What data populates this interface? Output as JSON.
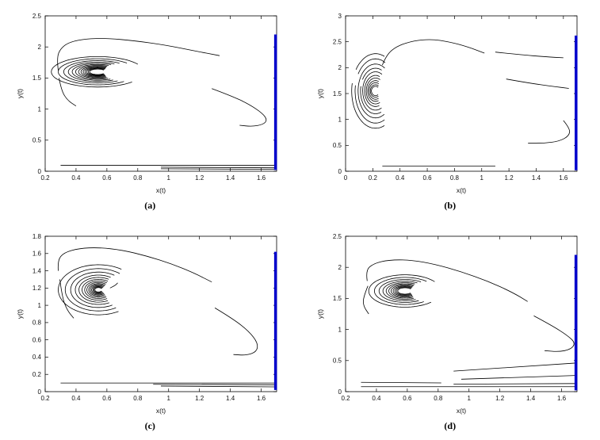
{
  "page": {
    "background": "#ffffff"
  },
  "chart_data": [
    {
      "id": "a",
      "type": "line",
      "caption": "(a)",
      "xlabel": "x(t)",
      "ylabel": "y(t)",
      "xlim": [
        0.2,
        1.7
      ],
      "ylim": [
        0,
        2.5
      ],
      "xticks": [
        0.2,
        0.4,
        0.6,
        0.8,
        1,
        1.2,
        1.4,
        1.6
      ],
      "xtick_labels": [
        "0.2",
        "0.4",
        "0.6",
        "0.8",
        "1",
        "1.2",
        "1.4",
        "1.6"
      ],
      "yticks": [
        0,
        0.5,
        1,
        1.5,
        2,
        2.5
      ],
      "ytick_labels": [
        "0",
        "0.5",
        "1",
        "1.5",
        "2",
        "2.5"
      ],
      "grid": false,
      "trajectory_color": "#000000",
      "equilibrium_color": "#0000cc",
      "spiral": {
        "cx": 0.54,
        "cy": 1.6,
        "arcs": [
          [
            0.3,
            0.245,
            30,
            318
          ],
          [
            0.255,
            0.21,
            42,
            312
          ],
          [
            0.22,
            0.18,
            50,
            306
          ],
          [
            0.19,
            0.155,
            55,
            302
          ],
          [
            0.165,
            0.135,
            58,
            300
          ],
          [
            0.143,
            0.118,
            60,
            298
          ],
          [
            0.124,
            0.103,
            60,
            298
          ],
          [
            0.108,
            0.09,
            58,
            300
          ],
          [
            0.094,
            0.078,
            55,
            303
          ],
          [
            0.082,
            0.068,
            52,
            306
          ],
          [
            0.071,
            0.059,
            48,
            310
          ],
          [
            0.061,
            0.051,
            44,
            314
          ],
          [
            0.052,
            0.044,
            40,
            318
          ]
        ]
      },
      "series": [
        {
          "name": "outer-loop-top",
          "points": [
            [
              0.285,
              1.62
            ],
            [
              0.275,
              1.82
            ],
            [
              0.3,
              1.98
            ],
            [
              0.36,
              2.08
            ],
            [
              0.46,
              2.13
            ],
            [
              0.6,
              2.14
            ],
            [
              0.78,
              2.1
            ],
            [
              0.98,
              2.03
            ],
            [
              1.16,
              1.94
            ],
            [
              1.33,
              1.86
            ]
          ]
        },
        {
          "name": "outer-loop-left",
          "points": [
            [
              0.29,
              1.5
            ],
            [
              0.305,
              1.3
            ],
            [
              0.345,
              1.14
            ],
            [
              0.4,
              1.05
            ]
          ]
        },
        {
          "name": "right-hook",
          "points": [
            [
              1.28,
              1.33
            ],
            [
              1.4,
              1.22
            ],
            [
              1.52,
              1.08
            ],
            [
              1.61,
              0.93
            ],
            [
              1.64,
              0.82
            ],
            [
              1.61,
              0.75
            ],
            [
              1.54,
              0.72
            ],
            [
              1.46,
              0.74
            ]
          ]
        }
      ],
      "bottom_lines": [
        [
          0.3,
          0.095,
          1.69,
          0.095
        ],
        [
          0.95,
          0.065,
          1.69,
          0.055
        ],
        [
          0.95,
          0.04,
          1.69,
          0.03
        ]
      ],
      "equilibrium_bar": {
        "x": 1.693,
        "y0": 0.02,
        "y1": 2.2
      }
    },
    {
      "id": "b",
      "type": "line",
      "caption": "(b)",
      "xlabel": "x(t)",
      "ylabel": "y(t)",
      "xlim": [
        0,
        1.7
      ],
      "ylim": [
        0,
        3
      ],
      "xticks": [
        0,
        0.2,
        0.4,
        0.6,
        0.8,
        1,
        1.2,
        1.4,
        1.6
      ],
      "xtick_labels": [
        "0",
        "0.2",
        "0.4",
        "0.6",
        "0.8",
        "1",
        "1.2",
        "1.4",
        "1.6"
      ],
      "yticks": [
        0,
        0.5,
        1,
        1.5,
        2,
        2.5,
        3
      ],
      "ytick_labels": [
        "0",
        "0.5",
        "1",
        "1.5",
        "2",
        "2.5",
        "3"
      ],
      "grid": false,
      "trajectory_color": "#000000",
      "equilibrium_color": "#0000cc",
      "spiral": {
        "cx": 0.22,
        "cy": 1.55,
        "arcs": [
          [
            0.175,
            0.72,
            68,
            145
          ],
          [
            0.175,
            0.72,
            168,
            292
          ],
          [
            0.15,
            0.62,
            62,
            148
          ],
          [
            0.15,
            0.62,
            170,
            296
          ],
          [
            0.128,
            0.52,
            58,
            300
          ],
          [
            0.11,
            0.44,
            66,
            150
          ],
          [
            0.11,
            0.44,
            168,
            292
          ],
          [
            0.094,
            0.37,
            60,
            298
          ],
          [
            0.08,
            0.3,
            68,
            290
          ],
          [
            0.068,
            0.25,
            60,
            298
          ],
          [
            0.057,
            0.2,
            66,
            292
          ],
          [
            0.047,
            0.16,
            60,
            298
          ],
          [
            0.038,
            0.12,
            55,
            303
          ],
          [
            0.03,
            0.09,
            50,
            308
          ]
        ]
      },
      "series": [
        {
          "name": "outer-loop-top",
          "points": [
            [
              0.27,
              2.05
            ],
            [
              0.3,
              2.25
            ],
            [
              0.38,
              2.42
            ],
            [
              0.5,
              2.52
            ],
            [
              0.63,
              2.55
            ],
            [
              0.76,
              2.5
            ],
            [
              0.9,
              2.4
            ],
            [
              1.02,
              2.28
            ]
          ]
        },
        {
          "name": "upper-right-arc",
          "points": [
            [
              1.1,
              2.3
            ],
            [
              1.28,
              2.25
            ],
            [
              1.47,
              2.21
            ],
            [
              1.6,
              2.19
            ]
          ]
        },
        {
          "name": "mid-right-arc",
          "points": [
            [
              1.18,
              1.78
            ],
            [
              1.35,
              1.7
            ],
            [
              1.52,
              1.64
            ],
            [
              1.64,
              1.6
            ]
          ]
        },
        {
          "name": "right-hook",
          "points": [
            [
              1.6,
              0.98
            ],
            [
              1.65,
              0.82
            ],
            [
              1.64,
              0.68
            ],
            [
              1.57,
              0.58
            ],
            [
              1.46,
              0.54
            ],
            [
              1.34,
              0.54
            ]
          ]
        }
      ],
      "bottom_lines": [
        [
          0.27,
          0.1,
          1.1,
          0.1
        ]
      ],
      "equilibrium_bar": {
        "x": 1.693,
        "y0": 0.02,
        "y1": 2.62
      }
    },
    {
      "id": "c",
      "type": "line",
      "caption": "(c)",
      "xlabel": "x(t)",
      "ylabel": "y(t)",
      "xlim": [
        0.2,
        1.7
      ],
      "ylim": [
        0,
        1.8
      ],
      "xticks": [
        0.2,
        0.4,
        0.6,
        0.8,
        1,
        1.2,
        1.4,
        1.6
      ],
      "xtick_labels": [
        "0.2",
        "0.4",
        "0.6",
        "0.8",
        "1",
        "1.2",
        "1.4",
        "1.6"
      ],
      "yticks": [
        0,
        0.2,
        0.4,
        0.6,
        0.8,
        1,
        1.2,
        1.4,
        1.6,
        1.8
      ],
      "ytick_labels": [
        "0",
        "0.2",
        "0.4",
        "0.6",
        "0.8",
        "1",
        "1.2",
        "1.4",
        "1.6",
        "1.8"
      ],
      "grid": false,
      "trajectory_color": "#000000",
      "equilibrium_color": "#0000cc",
      "spiral": {
        "cx": 0.545,
        "cy": 1.18,
        "arcs": [
          [
            0.26,
            0.29,
            55,
            300
          ],
          [
            0.215,
            0.245,
            50,
            302
          ],
          [
            0.18,
            0.205,
            55,
            300
          ],
          [
            0.15,
            0.17,
            58,
            298
          ],
          [
            0.126,
            0.143,
            58,
            299
          ],
          [
            0.106,
            0.12,
            55,
            302
          ],
          [
            0.089,
            0.101,
            52,
            305
          ],
          [
            0.075,
            0.085,
            50,
            308
          ],
          [
            0.063,
            0.071,
            46,
            311
          ],
          [
            0.053,
            0.06,
            43,
            314
          ],
          [
            0.044,
            0.05,
            40,
            317
          ],
          [
            0.036,
            0.041,
            36,
            320
          ],
          [
            0.029,
            0.033,
            32,
            324
          ],
          [
            0.023,
            0.026,
            28,
            328
          ]
        ]
      },
      "series": [
        {
          "name": "outer-loop-top",
          "points": [
            [
              0.285,
              1.4
            ],
            [
              0.28,
              1.52
            ],
            [
              0.32,
              1.61
            ],
            [
              0.42,
              1.66
            ],
            [
              0.55,
              1.67
            ],
            [
              0.7,
              1.64
            ],
            [
              0.86,
              1.57
            ],
            [
              1.02,
              1.48
            ],
            [
              1.17,
              1.37
            ],
            [
              1.28,
              1.27
            ]
          ]
        },
        {
          "name": "outer-loop-left",
          "points": [
            [
              0.295,
              1.3
            ],
            [
              0.31,
              1.1
            ],
            [
              0.34,
              0.95
            ],
            [
              0.385,
              0.85
            ]
          ]
        },
        {
          "name": "right-hook",
          "points": [
            [
              1.3,
              0.97
            ],
            [
              1.42,
              0.84
            ],
            [
              1.52,
              0.7
            ],
            [
              1.58,
              0.56
            ],
            [
              1.57,
              0.46
            ],
            [
              1.5,
              0.42
            ],
            [
              1.42,
              0.43
            ]
          ]
        },
        {
          "name": "inner-dash",
          "points": [
            [
              0.62,
              1.2
            ],
            [
              0.655,
              1.23
            ],
            [
              0.67,
              1.26
            ]
          ]
        }
      ],
      "bottom_lines": [
        [
          0.3,
          0.1,
          1.69,
          0.1
        ],
        [
          0.9,
          0.085,
          1.69,
          0.08
        ],
        [
          0.95,
          0.065,
          1.69,
          0.055
        ]
      ],
      "equilibrium_bar": {
        "x": 1.693,
        "y0": 0.02,
        "y1": 1.62
      }
    },
    {
      "id": "d",
      "type": "line",
      "caption": "(d)",
      "xlabel": "x(t)",
      "ylabel": "y(t)",
      "xlim": [
        0.2,
        1.7
      ],
      "ylim": [
        0,
        2.5
      ],
      "xticks": [
        0.2,
        0.4,
        0.6,
        0.8,
        1,
        1.2,
        1.4,
        1.6
      ],
      "xtick_labels": [
        "0.2",
        "0.4",
        "0.6",
        "0.8",
        "1",
        "1.2",
        "1.4",
        "1.6"
      ],
      "yticks": [
        0,
        0.5,
        1,
        1.5,
        2,
        2.5
      ],
      "ytick_labels": [
        "0",
        "0.5",
        "1",
        "1.5",
        "2",
        "2.5"
      ],
      "grid": false,
      "trajectory_color": "#000000",
      "equilibrium_color": "#0000cc",
      "spiral": {
        "cx": 0.585,
        "cy": 1.62,
        "arcs": [
          [
            0.235,
            0.26,
            35,
            316
          ],
          [
            0.198,
            0.218,
            45,
            308
          ],
          [
            0.168,
            0.184,
            52,
            302
          ],
          [
            0.143,
            0.156,
            56,
            299
          ],
          [
            0.122,
            0.133,
            58,
            298
          ],
          [
            0.105,
            0.114,
            56,
            300
          ],
          [
            0.09,
            0.098,
            53,
            303
          ],
          [
            0.077,
            0.084,
            50,
            307
          ],
          [
            0.066,
            0.072,
            46,
            311
          ],
          [
            0.056,
            0.061,
            42,
            315
          ],
          [
            0.047,
            0.051,
            38,
            319
          ]
        ]
      },
      "series": [
        {
          "name": "outer-loop-top",
          "points": [
            [
              0.34,
              1.78
            ],
            [
              0.33,
              1.95
            ],
            [
              0.38,
              2.06
            ],
            [
              0.48,
              2.12
            ],
            [
              0.62,
              2.12
            ],
            [
              0.78,
              2.05
            ],
            [
              0.95,
              1.93
            ],
            [
              1.12,
              1.78
            ],
            [
              1.28,
              1.6
            ],
            [
              1.38,
              1.45
            ]
          ]
        },
        {
          "name": "outer-loop-left",
          "points": [
            [
              0.345,
              1.7
            ],
            [
              0.315,
              1.52
            ],
            [
              0.315,
              1.38
            ],
            [
              0.35,
              1.25
            ]
          ]
        },
        {
          "name": "right-hook",
          "points": [
            [
              1.42,
              1.22
            ],
            [
              1.54,
              1.06
            ],
            [
              1.64,
              0.9
            ],
            [
              1.69,
              0.78
            ],
            [
              1.66,
              0.68
            ],
            [
              1.58,
              0.64
            ],
            [
              1.49,
              0.66
            ]
          ]
        }
      ],
      "bottom_lines": [
        [
          0.3,
          0.15,
          0.82,
          0.14
        ],
        [
          0.9,
          0.33,
          1.69,
          0.46
        ],
        [
          0.95,
          0.2,
          1.69,
          0.26
        ],
        [
          0.9,
          0.12,
          1.69,
          0.13
        ],
        [
          0.3,
          0.08,
          1.69,
          0.08
        ]
      ],
      "equilibrium_bar": {
        "x": 1.693,
        "y0": 0.02,
        "y1": 2.2
      }
    }
  ]
}
